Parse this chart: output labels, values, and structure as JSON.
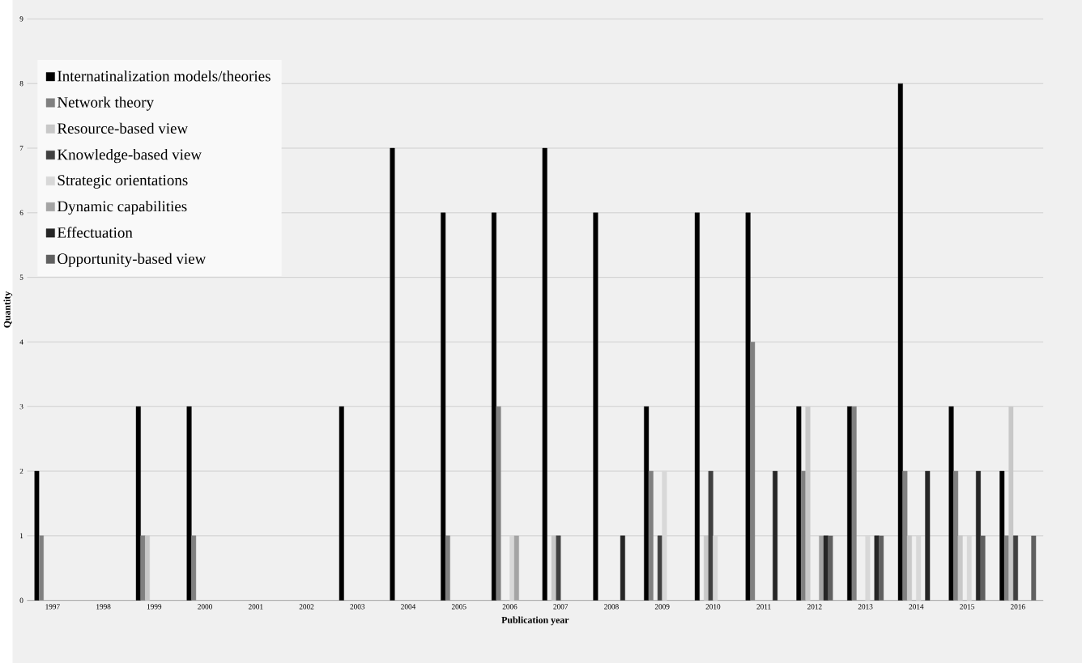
{
  "chart_data": {
    "type": "bar",
    "xlabel": "Publication year",
    "ylabel": "Quantity",
    "categories": [
      "1997",
      "1998",
      "1999",
      "2000",
      "2001",
      "2002",
      "2003",
      "2004",
      "2005",
      "2006",
      "2007",
      "2008",
      "2009",
      "2010",
      "2011",
      "2012",
      "2013",
      "2014",
      "2015",
      "2016"
    ],
    "series": [
      {
        "name": "Internatinalization models/theories",
        "color": "#000000",
        "values": [
          2,
          null,
          3,
          3,
          null,
          null,
          3,
          7,
          6,
          6,
          7,
          6,
          3,
          6,
          6,
          3,
          3,
          8,
          3,
          2
        ]
      },
      {
        "name": "Network theory",
        "color": "#808080",
        "values": [
          1,
          null,
          1,
          1,
          null,
          null,
          null,
          null,
          1,
          3,
          null,
          null,
          2,
          null,
          4,
          2,
          3,
          2,
          2,
          1
        ]
      },
      {
        "name": "Resource-based view",
        "color": "#c8c8c8",
        "values": [
          null,
          null,
          1,
          null,
          null,
          null,
          null,
          null,
          null,
          null,
          1,
          null,
          null,
          1,
          null,
          3,
          null,
          1,
          1,
          3
        ]
      },
      {
        "name": "Knowledge-based view",
        "color": "#404040",
        "values": [
          null,
          null,
          null,
          null,
          null,
          null,
          null,
          null,
          null,
          null,
          1,
          null,
          1,
          2,
          null,
          null,
          null,
          null,
          null,
          1
        ]
      },
      {
        "name": "Strategic orientations",
        "color": "#d8d8d8",
        "values": [
          null,
          null,
          null,
          null,
          null,
          null,
          null,
          null,
          null,
          1,
          null,
          null,
          2,
          1,
          null,
          null,
          1,
          1,
          1,
          null
        ]
      },
      {
        "name": "Dynamic capabilities",
        "color": "#a4a4a4",
        "values": [
          null,
          null,
          null,
          null,
          null,
          null,
          null,
          null,
          null,
          1,
          null,
          null,
          null,
          null,
          null,
          1,
          null,
          null,
          null,
          null
        ]
      },
      {
        "name": "Effectuation",
        "color": "#262626",
        "values": [
          null,
          null,
          null,
          null,
          null,
          null,
          null,
          null,
          null,
          null,
          null,
          1,
          null,
          null,
          2,
          1,
          1,
          2,
          2,
          null
        ]
      },
      {
        "name": "Opportunity-based view",
        "color": "#606060",
        "values": [
          null,
          null,
          null,
          null,
          null,
          null,
          null,
          null,
          null,
          null,
          null,
          null,
          null,
          null,
          null,
          1,
          1,
          null,
          1,
          1
        ]
      }
    ],
    "ylim": [
      0,
      9
    ],
    "yticks": [
      0,
      1,
      2,
      3,
      4,
      5,
      6,
      7,
      8,
      9
    ],
    "grid": "y",
    "legend": "top left"
  }
}
